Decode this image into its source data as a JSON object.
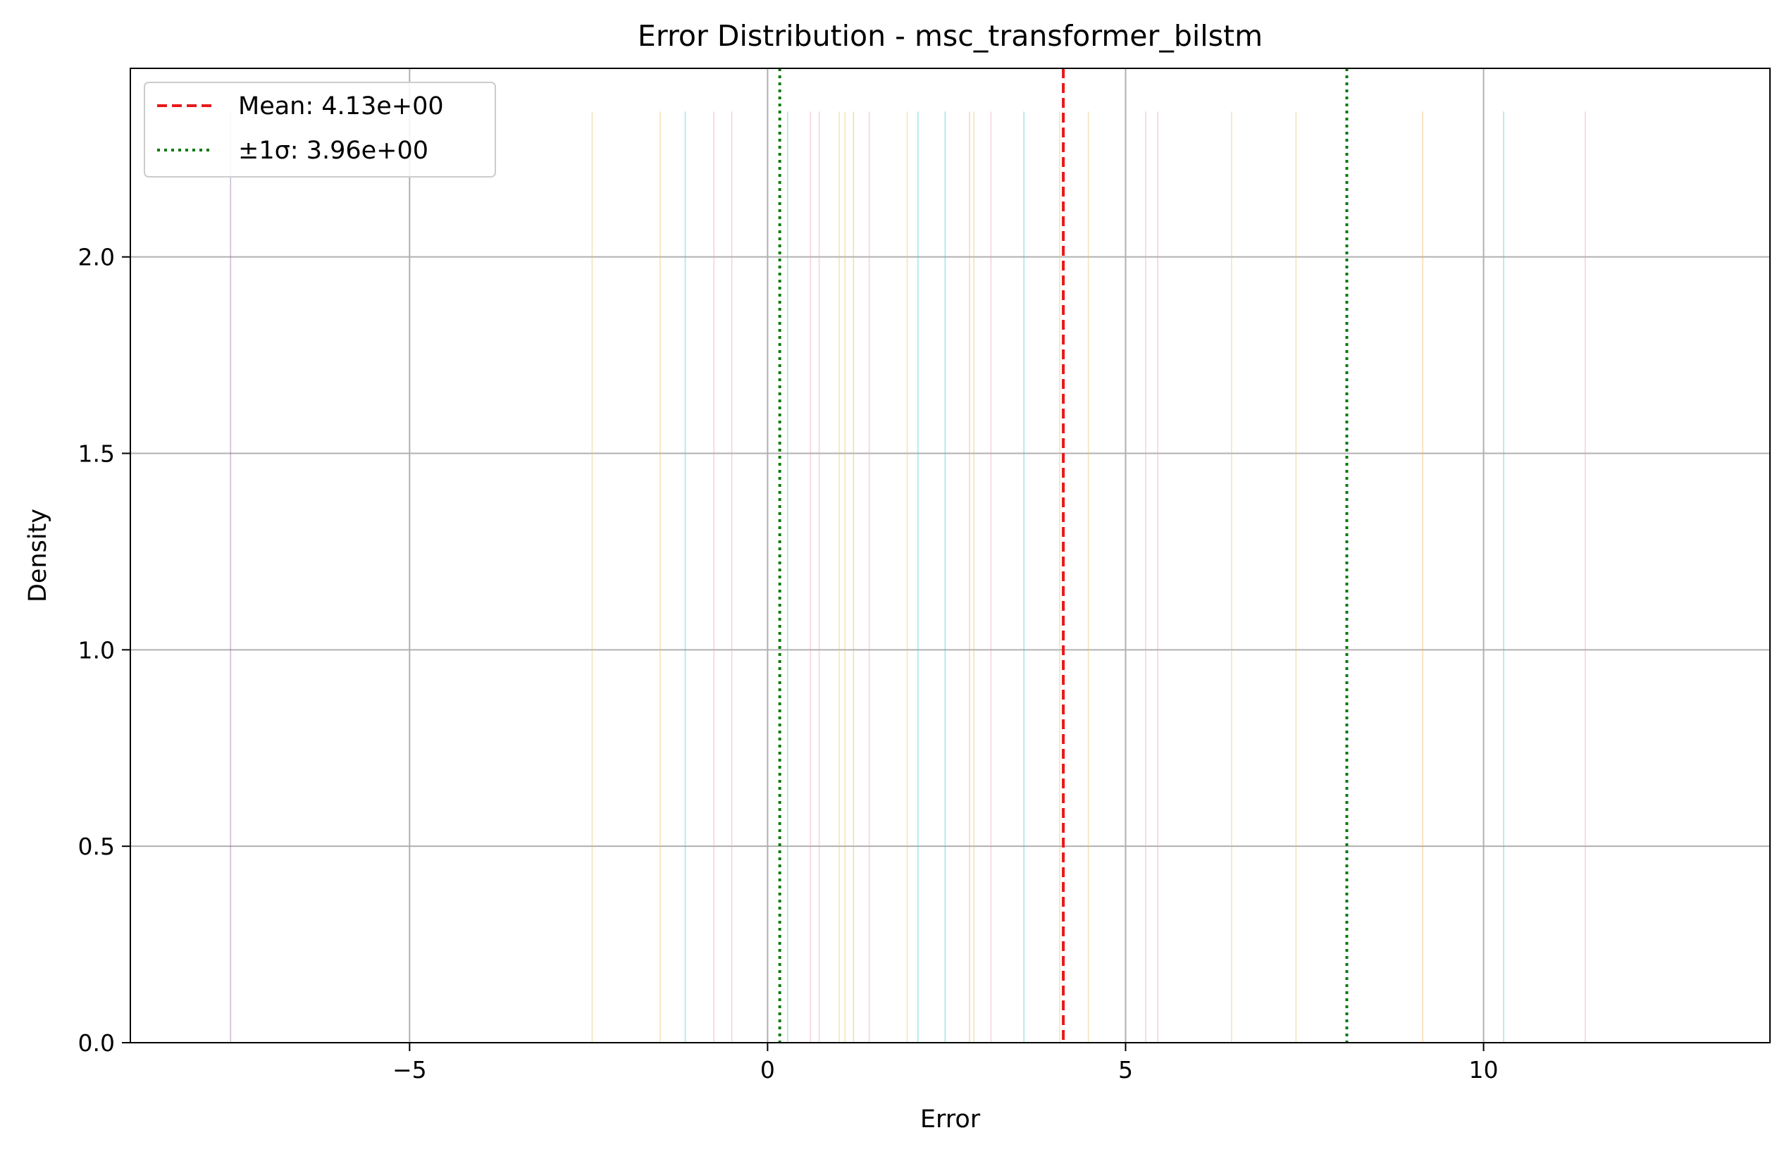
{
  "chart_data": {
    "type": "histogram",
    "title": "Error Distribution - msc_transformer_bilstm",
    "xlabel": "Error",
    "ylabel": "Density",
    "xlim": [
      -8.9,
      14.0
    ],
    "ylim": [
      0,
      2.48
    ],
    "x_ticks": [
      -5,
      0,
      5,
      10
    ],
    "x_tick_labels": [
      "−5",
      "0",
      "5",
      "10"
    ],
    "y_ticks": [
      0.0,
      0.5,
      1.0,
      1.5,
      2.0
    ],
    "y_tick_labels": [
      "0.0",
      "0.5",
      "1.0",
      "1.5",
      "2.0"
    ],
    "grid": true,
    "legend_position": "top-left",
    "bar_height": 2.37,
    "bar_alpha": 0.45,
    "bars": [
      {
        "x": -7.5,
        "color": "#8c6bb1"
      },
      {
        "x": -2.45,
        "color": "#e6c463"
      },
      {
        "x": -1.5,
        "color": "#e6c463"
      },
      {
        "x": -1.15,
        "color": "#3ec9c9"
      },
      {
        "x": -0.75,
        "color": "#f09abf"
      },
      {
        "x": -0.5,
        "color": "#f09abf"
      },
      {
        "x": 0.28,
        "color": "#3ec9c9"
      },
      {
        "x": 0.6,
        "color": "#f09abf"
      },
      {
        "x": 0.72,
        "color": "#f09abf"
      },
      {
        "x": 1.0,
        "color": "#e6c463"
      },
      {
        "x": 1.08,
        "color": "#e6c463"
      },
      {
        "x": 1.2,
        "color": "#f2b14e"
      },
      {
        "x": 1.42,
        "color": "#f09abf"
      },
      {
        "x": 1.95,
        "color": "#e6c463"
      },
      {
        "x": 2.1,
        "color": "#3ec9c9"
      },
      {
        "x": 2.48,
        "color": "#3ec9c9"
      },
      {
        "x": 2.82,
        "color": "#f2b14e"
      },
      {
        "x": 2.88,
        "color": "#e6c463"
      },
      {
        "x": 3.12,
        "color": "#f09abf"
      },
      {
        "x": 3.58,
        "color": "#3ec9c9"
      },
      {
        "x": 4.08,
        "color": "#e6c463"
      },
      {
        "x": 4.48,
        "color": "#e6c463"
      },
      {
        "x": 5.28,
        "color": "#f09abf"
      },
      {
        "x": 5.45,
        "color": "#f09abf"
      },
      {
        "x": 6.48,
        "color": "#e6c463"
      },
      {
        "x": 7.38,
        "color": "#e6c463"
      },
      {
        "x": 9.15,
        "color": "#f2b14e"
      },
      {
        "x": 10.28,
        "color": "#3ec9c9"
      },
      {
        "x": 11.42,
        "color": "#f09abf"
      }
    ],
    "mean_line": {
      "x": 4.13,
      "color": "#e8191b",
      "label": "Mean: 4.13e+00"
    },
    "sigma_lines": {
      "x": [
        0.17,
        8.09
      ],
      "color": "#0c7a0c",
      "label": "±1σ: 3.96e+00"
    }
  }
}
